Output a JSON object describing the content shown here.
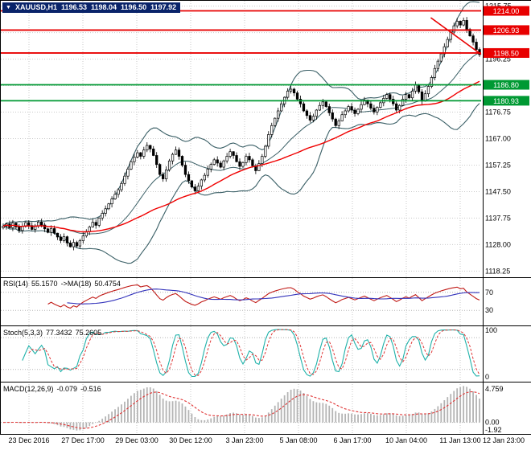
{
  "window_title": "XAUUSD,H1",
  "quote_bar": {
    "icon": "▼",
    "symbol": "XAUUSD,H1",
    "open": "1196.53",
    "high": "1198.04",
    "low": "1196.50",
    "close": "1197.92"
  },
  "colors": {
    "grid": "#c9c9c9",
    "level": "#b3b3b3",
    "bands": "#3a5f66",
    "ma": "#f00000",
    "red_line": "#e80000",
    "green_line": "#009933",
    "rsi": "#c11b17",
    "rsi_ma": "#3333bb",
    "stoch_k": "#20b2aa",
    "stoch_d": "#e03636",
    "macd_bar": "#b4b4b4",
    "macd_signal": "#e03636",
    "quote_bg": "#0a246a",
    "badge_text": "#ffffff"
  },
  "chart_data": [
    {
      "type": "candlestick",
      "symbol": "XAUUSD",
      "timeframe": "H1",
      "y_range": [
        1116,
        1218
      ],
      "y_ticks": [
        "1215.75",
        "1206.00",
        "1196.25",
        "1186.50",
        "1176.75",
        "1167.00",
        "1157.25",
        "1147.50",
        "1137.75",
        "1128.00",
        "1118.25"
      ],
      "x_labels": [
        "23 Dec 2016",
        "27 Dec 17:00",
        "29 Dec 03:00",
        "30 Dec 12:00",
        "3 Jan 23:00",
        "5 Jan 08:00",
        "6 Jan 17:00",
        "10 Jan 04:00",
        "11 Jan 13:00",
        "12 Jan 23:00"
      ],
      "hlines": [
        {
          "value": 1214.0,
          "label": "1214.00",
          "color": "#e80000"
        },
        {
          "value": 1206.93,
          "label": "1206.93",
          "color": "#e80000"
        },
        {
          "value": 1198.5,
          "label": "1198.50",
          "color": "#e80000"
        },
        {
          "value": 1186.8,
          "label": "1186.80",
          "color": "#009933"
        },
        {
          "value": 1180.93,
          "label": "1180.93",
          "color": "#009933"
        }
      ],
      "trendline": {
        "x1_frac": 0.895,
        "value1": 1211.5,
        "x2_frac": 1.0,
        "value2": 1198.0
      },
      "overlays": {
        "bollinger_period": 20,
        "bollinger_deviation": 2,
        "ma_period": 45
      },
      "closes": [
        1134.8,
        1135.6,
        1134.2,
        1135.9,
        1134.5,
        1133.2,
        1134.7,
        1136.1,
        1135.0,
        1133.6,
        1134.9,
        1136.3,
        1135.2,
        1133.8,
        1132.5,
        1133.9,
        1132.2,
        1130.8,
        1129.5,
        1130.9,
        1128.6,
        1127.2,
        1128.8,
        1127.5,
        1129.4,
        1131.2,
        1132.8,
        1134.5,
        1136.2,
        1135.1,
        1137.8,
        1139.5,
        1141.2,
        1143.0,
        1144.8,
        1146.5,
        1148.2,
        1150.5,
        1153.2,
        1155.8,
        1158.5,
        1160.2,
        1161.8,
        1160.5,
        1162.8,
        1164.5,
        1163.2,
        1160.8,
        1157.5,
        1153.8,
        1152.2,
        1155.5,
        1158.8,
        1161.2,
        1162.8,
        1160.5,
        1157.2,
        1153.8,
        1151.5,
        1149.2,
        1147.8,
        1149.5,
        1151.8,
        1153.5,
        1155.8,
        1157.5,
        1159.2,
        1158.0,
        1156.5,
        1158.8,
        1160.5,
        1162.2,
        1160.8,
        1158.5,
        1156.8,
        1158.2,
        1160.5,
        1159.2,
        1157.0,
        1155.2,
        1157.8,
        1160.5,
        1164.2,
        1168.5,
        1171.8,
        1174.5,
        1177.2,
        1179.8,
        1182.2,
        1184.5,
        1185.2,
        1183.8,
        1181.5,
        1179.8,
        1177.2,
        1175.5,
        1173.8,
        1175.2,
        1177.5,
        1179.2,
        1180.5,
        1178.8,
        1176.5,
        1174.2,
        1171.8,
        1173.5,
        1175.8,
        1177.2,
        1178.8,
        1177.5,
        1176.2,
        1177.8,
        1179.5,
        1181.2,
        1179.8,
        1178.2,
        1176.8,
        1178.5,
        1180.2,
        1181.8,
        1183.2,
        1181.5,
        1179.8,
        1177.5,
        1179.2,
        1181.5,
        1183.2,
        1182.0,
        1184.5,
        1186.8,
        1184.2,
        1180.8,
        1183.5,
        1186.2,
        1189.5,
        1192.8,
        1195.5,
        1198.2,
        1200.8,
        1203.5,
        1206.2,
        1208.5,
        1210.2,
        1208.8,
        1210.5,
        1207.2,
        1204.8,
        1202.5,
        1199.8,
        1197.9
      ]
    },
    {
      "type": "line",
      "name": "RSI(14)",
      "value": "55.1570",
      "ma_name": "->MA(18)",
      "ma_value": "50.4754",
      "period": 14,
      "ma_period": 18,
      "levels": [
        70,
        30
      ],
      "axis_labels": [
        "70",
        "30"
      ],
      "y_range": [
        0,
        100
      ]
    },
    {
      "type": "line",
      "name": "Stoch(5,3,3)",
      "value": "77.3432",
      "signal_value": "75.2605",
      "k_period": 5,
      "slowing": 3,
      "d_period": 3,
      "levels": [
        80,
        20
      ],
      "axis_labels": [
        "100",
        "0"
      ],
      "y_range": [
        0,
        100
      ]
    },
    {
      "type": "macd-histogram",
      "name": "MACD(12,26,9)",
      "value": "-0.079",
      "signal_value": "-0.516",
      "fast": 12,
      "slow": 26,
      "signal": 9,
      "axis_labels": [
        "4.759",
        "0.00",
        "-1.92"
      ]
    }
  ]
}
